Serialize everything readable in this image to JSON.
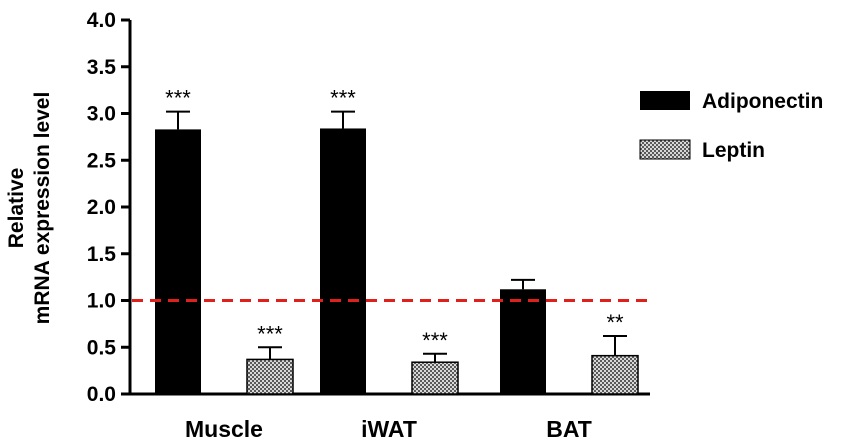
{
  "chart_data": {
    "type": "bar",
    "title": "",
    "xlabel": "",
    "ylabel": [
      "Relative",
      "mRNA expression level"
    ],
    "ylim": [
      0,
      4.0
    ],
    "yticks": [
      "0.0",
      "0.5",
      "1.0",
      "1.5",
      "2.0",
      "2.5",
      "3.0",
      "3.5",
      "4.0"
    ],
    "categories": [
      "Muscle",
      "iWAT",
      "BAT"
    ],
    "series": [
      {
        "name": "Adiponectin",
        "pattern": "solid",
        "color": "#000000",
        "values": [
          2.83,
          2.84,
          1.12
        ],
        "errors": [
          0.19,
          0.18,
          0.1
        ],
        "significance": [
          "***",
          "***",
          ""
        ]
      },
      {
        "name": "Leptin",
        "pattern": "checkered",
        "color": "#9a9a9a",
        "values": [
          0.37,
          0.34,
          0.41
        ],
        "errors": [
          0.13,
          0.09,
          0.21
        ],
        "significance": [
          "***",
          "***",
          "**"
        ]
      }
    ],
    "reference_line": {
      "value": 1.0,
      "color": "#e0201b",
      "style": "dashed"
    },
    "legend_position": "right",
    "grid": false
  }
}
